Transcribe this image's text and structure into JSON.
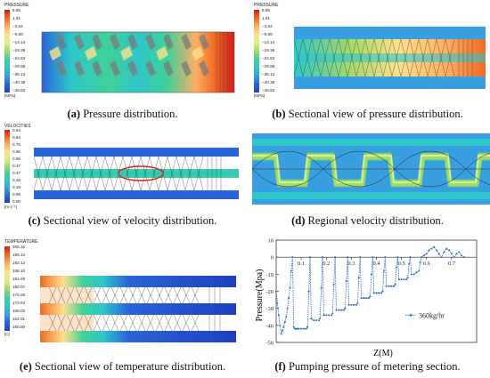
{
  "figures": {
    "a": {
      "legend_title": "PRESSURE",
      "ticks": [
        "6.86",
        "1.61",
        "−3.64",
        "−8.89",
        "−14.14",
        "−19.39",
        "−24.63",
        "−29.88",
        "−35.13",
        "−40.38",
        "−45.63"
      ],
      "unit": "[MPa]",
      "caption_label": "(a)",
      "caption_text": " Pressure distribution."
    },
    "b": {
      "legend_title": "PRESSURE",
      "ticks": [
        "6.86",
        "1.61",
        "−3.64",
        "−8.89",
        "−14.14",
        "−19.39",
        "−24.63",
        "−29.88",
        "−35.13",
        "−40.38",
        "−45.63"
      ],
      "unit": "[MPa]",
      "caption_label": "(b)",
      "caption_text": " Sectional view of pressure distribution."
    },
    "c": {
      "legend_title": "VELOCITIES",
      "ticks": [
        "0.94",
        "0.84",
        "0.75",
        "0.66",
        "0.56",
        "0.47",
        "0.37",
        "0.28",
        "0.19",
        "0.09",
        "0.00"
      ],
      "unit": "[m s⁻¹]",
      "caption_label": "(c)",
      "caption_text": " Sectional view of velocity distribution."
    },
    "d": {
      "caption_label": "(d)",
      "caption_text": " Regional velocity distribution."
    },
    "e": {
      "legend_title": "TEMPERATURE",
      "ticks": [
        "200.15",
        "196.13",
        "192.12",
        "188.10",
        "184.09",
        "180.07",
        "176.06",
        "172.04",
        "168.03",
        "164.01",
        "160.00"
      ],
      "unit": "[C]",
      "caption_label": "(e)",
      "caption_text": " Sectional view of temperature distribution."
    },
    "f": {
      "caption_label": "(f)",
      "caption_text": " Pumping pressure of metering section."
    }
  },
  "colors": {
    "scale": [
      "#d7191c",
      "#f06a20",
      "#fdae61",
      "#fee08b",
      "#d9ef8b",
      "#a6d96a",
      "#3fd09a",
      "#2ec7c9",
      "#3a9fe0",
      "#2a64d8",
      "#1f3fbf"
    ]
  },
  "chart_data": {
    "type": "line",
    "xlabel": "Z(M)",
    "ylabel": "Pressure(Mpa)",
    "xlim": [
      0,
      0.8
    ],
    "ylim": [
      -50,
      10
    ],
    "x_ticks": [
      0.1,
      0.2,
      0.3,
      0.4,
      0.5,
      0.6,
      0.7
    ],
    "x_tick_labels": [
      "0.1",
      "0.2",
      "0.3",
      "0.4",
      "0.5",
      "0.6",
      "0.7"
    ],
    "y_ticks": [
      10,
      0,
      -10,
      -20,
      -30,
      -40,
      -50
    ],
    "y_tick_labels": [
      "10",
      "0",
      "-10",
      "-20",
      "-30",
      "-40",
      "-50"
    ],
    "series": [
      {
        "name": "360kg/hr",
        "color": "#2a67c9",
        "x": [
          0.0,
          0.005,
          0.01,
          0.015,
          0.02,
          0.025,
          0.03,
          0.035,
          0.04,
          0.045,
          0.05,
          0.055,
          0.06,
          0.065,
          0.07,
          0.075,
          0.08,
          0.085,
          0.09,
          0.1,
          0.11,
          0.12,
          0.125,
          0.13,
          0.135,
          0.14,
          0.15,
          0.16,
          0.17,
          0.175,
          0.18,
          0.185,
          0.19,
          0.2,
          0.21,
          0.22,
          0.225,
          0.23,
          0.235,
          0.24,
          0.25,
          0.26,
          0.27,
          0.275,
          0.28,
          0.285,
          0.29,
          0.3,
          0.31,
          0.32,
          0.325,
          0.33,
          0.335,
          0.34,
          0.35,
          0.36,
          0.37,
          0.375,
          0.38,
          0.385,
          0.39,
          0.4,
          0.41,
          0.42,
          0.425,
          0.43,
          0.435,
          0.44,
          0.45,
          0.46,
          0.47,
          0.475,
          0.48,
          0.485,
          0.49,
          0.5,
          0.51,
          0.52,
          0.525,
          0.53,
          0.535,
          0.54,
          0.55,
          0.56,
          0.57,
          0.575,
          0.58,
          0.59,
          0.6,
          0.61,
          0.62,
          0.63,
          0.64,
          0.65,
          0.66,
          0.67,
          0.68,
          0.69,
          0.7,
          0.71,
          0.72,
          0.73,
          0.74,
          0.75
        ],
        "y": [
          -20,
          -27,
          -34,
          -40,
          -45,
          -43,
          -41,
          -38,
          -35,
          -30,
          -24,
          -18,
          -8,
          0,
          -41,
          -42,
          -42,
          -42,
          -42,
          -42,
          -42,
          -42,
          -41,
          -20,
          0,
          -36,
          -37,
          -37,
          -37,
          -36,
          -18,
          0,
          -34,
          -34,
          -34,
          -34,
          -33,
          -16,
          0,
          -31,
          -31,
          -31,
          -31,
          -30,
          -14,
          0,
          -28,
          -28,
          -28,
          -28,
          -27,
          -12,
          0,
          -24,
          -24,
          -24,
          -24,
          -23,
          -10,
          0,
          -21,
          -21,
          -21,
          -21,
          -20,
          -8,
          0,
          -17,
          -17,
          -17,
          -17,
          -16,
          -6,
          0,
          -13,
          -13,
          -13,
          -13,
          -12,
          -4,
          0,
          -10,
          -10,
          -9,
          -8,
          -3,
          0,
          1,
          2,
          4,
          5,
          6,
          4,
          2,
          0,
          3,
          5,
          4,
          2,
          0,
          2,
          3,
          1,
          0
        ]
      }
    ]
  }
}
